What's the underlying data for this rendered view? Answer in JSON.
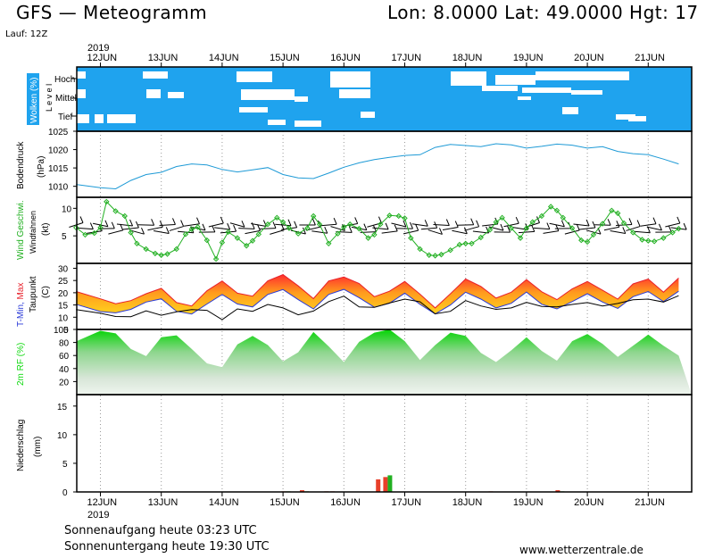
{
  "header": {
    "title": "GFS — Meteogramm",
    "coords": "Lon: 8.0000  Lat: 49.0000  Hgt: 17",
    "run": "Lauf: 12Z"
  },
  "footer": {
    "sunrise": "Sonnenaufgang heute 03:23 UTC",
    "sunset": "Sonnenuntergang heute 19:30 UTC",
    "site": "www.wetterzentrale.de"
  },
  "colors": {
    "cloud_bg": "#1fa3ee",
    "pressure": "#1e9ad6",
    "wind_speed": "#22b022",
    "tmin": "#2a3ad8",
    "tmax": "#e8202a",
    "dewpoint": "#000000",
    "humidity": "#11d911",
    "precip_a": "#e8402a",
    "precip_b": "#21b021"
  },
  "chart_data": {
    "type": "line",
    "x_axis": {
      "year": "2019",
      "day_labels": [
        "12JUN",
        "13JUN",
        "14JUN",
        "15JUN",
        "16JUN",
        "17JUN",
        "18JUN",
        "19JUN",
        "20JUN",
        "21JUN"
      ],
      "time_range": "12 Jun 2019 00 UTC – 21 Jun 2019 12 UTC"
    },
    "panels": [
      {
        "id": "clouds",
        "type": "heatmap",
        "ylabel": "Wolken (%)",
        "ylabel2": "L e v e l",
        "levels": [
          "Hoch",
          "Mittel",
          "Tief"
        ]
      },
      {
        "id": "pressure",
        "type": "line",
        "ylabel": "Bodendruck",
        "ylabel2": "(hPa)",
        "ylim": [
          1007,
          1025
        ],
        "yticks": [
          1010,
          1015,
          1020,
          1025
        ],
        "x_days": [
          -0.4,
          0,
          0.25,
          0.5,
          0.75,
          1,
          1.25,
          1.5,
          1.75,
          2,
          2.25,
          2.5,
          2.75,
          3,
          3.25,
          3.5,
          3.75,
          4,
          4.25,
          4.5,
          4.75,
          5,
          5.25,
          5.5,
          5.75,
          6,
          6.25,
          6.5,
          6.75,
          7,
          7.25,
          7.5,
          7.75,
          8,
          8.25,
          8.5,
          8.75,
          9,
          9.25,
          9.5
        ],
        "values": [
          1010.5,
          1009.6,
          1009.3,
          1011.6,
          1013.2,
          1013.8,
          1015.4,
          1016.1,
          1015.8,
          1014.6,
          1013.9,
          1014.5,
          1015.1,
          1013.2,
          1012.3,
          1012.1,
          1013.6,
          1015.2,
          1016.4,
          1017.3,
          1017.9,
          1018.4,
          1018.6,
          1020.6,
          1021.4,
          1021.1,
          1020.8,
          1021.6,
          1021.3,
          1020.4,
          1020.9,
          1021.5,
          1021.2,
          1020.4,
          1020.8,
          1019.5,
          1018.9,
          1018.6,
          1017.4,
          1016.1
        ]
      },
      {
        "id": "wind",
        "type": "line",
        "ylabel": "Wind Geschwi.",
        "ylabel2": "Windfahnen",
        "ylabel3": "(kt)",
        "ylim": [
          0,
          12
        ],
        "yticks": [
          5,
          10
        ],
        "x_days": [
          -0.4,
          -0.25,
          -0.1,
          0,
          0.1,
          0.25,
          0.4,
          0.5,
          0.6,
          0.75,
          0.9,
          1,
          1.1,
          1.25,
          1.4,
          1.5,
          1.6,
          1.75,
          1.9,
          2,
          2.1,
          2.25,
          2.4,
          2.5,
          2.6,
          2.75,
          2.9,
          3,
          3.1,
          3.25,
          3.4,
          3.5,
          3.6,
          3.75,
          3.9,
          4,
          4.1,
          4.25,
          4.4,
          4.5,
          4.6,
          4.75,
          4.9,
          5,
          5.1,
          5.25,
          5.4,
          5.5,
          5.6,
          5.75,
          5.9,
          6,
          6.1,
          6.25,
          6.4,
          6.5,
          6.6,
          6.75,
          6.9,
          7,
          7.1,
          7.25,
          7.4,
          7.5,
          7.6,
          7.75,
          7.9,
          8,
          8.1,
          8.25,
          8.4,
          8.5,
          8.6,
          8.75,
          8.9,
          9,
          9.1,
          9.25,
          9.4,
          9.5
        ],
        "values": [
          6.5,
          5.2,
          5.5,
          6.5,
          11.2,
          9.5,
          8.6,
          5.6,
          3.6,
          2.6,
          1.8,
          1.5,
          1.7,
          2.6,
          5.3,
          6.2,
          6.6,
          4.2,
          0.8,
          3.8,
          5.7,
          4.6,
          3.2,
          4.1,
          5.3,
          7.1,
          8.3,
          7.5,
          6.4,
          5.4,
          6.4,
          8.6,
          7.1,
          3.6,
          5.4,
          6.6,
          7.1,
          6.3,
          4.6,
          5.2,
          7.1,
          8.7,
          8.6,
          8.2,
          4.6,
          2.6,
          1.5,
          1.4,
          1.6,
          2.4,
          3.4,
          3.6,
          3.6,
          4.7,
          6.1,
          7.5,
          8.3,
          6.4,
          4.6,
          6.4,
          7.5,
          8.6,
          10.3,
          9.6,
          8.3,
          6.4,
          4.2,
          3.9,
          5.2,
          7.2,
          9.6,
          9.1,
          7.3,
          5.6,
          4.3,
          4.1,
          4.0,
          4.6,
          5.6,
          6.3
        ]
      },
      {
        "id": "temperature",
        "type": "area",
        "ylabel": "T-Min, Max",
        "ylabel2": "Taupunkt",
        "ylabel3": "(C)",
        "ylim": [
          5,
          32
        ],
        "yticks": [
          5,
          10,
          15,
          20,
          25,
          30
        ],
        "series": [
          {
            "name": "Max",
            "x_days": [
              -0.4,
              0,
              0.25,
              0.5,
              0.75,
              1,
              1.25,
              1.5,
              1.75,
              2,
              2.25,
              2.5,
              2.75,
              3,
              3.25,
              3.5,
              3.75,
              4,
              4.25,
              4.5,
              4.75,
              5,
              5.25,
              5.5,
              5.75,
              6,
              6.25,
              6.5,
              6.75,
              7,
              7.25,
              7.5,
              7.75,
              8,
              8.25,
              8.5,
              8.75,
              9,
              9.25,
              9.5
            ],
            "values": [
              20.5,
              17.5,
              15.5,
              16.8,
              19.6,
              21.8,
              16.0,
              14.6,
              20.8,
              24.8,
              19.8,
              18.6,
              24.9,
              27.4,
              22.8,
              17.6,
              24.8,
              26.4,
              23.8,
              18.4,
              20.6,
              24.6,
              19.4,
              13.8,
              19.6,
              25.6,
              22.6,
              17.8,
              20.2,
              25.4,
              20.4,
              17.2,
              21.6,
              24.6,
              21.0,
              17.4,
              23.6,
              25.6,
              20.2,
              26.0
            ]
          },
          {
            "name": "Min",
            "x_days": [
              -0.4,
              0,
              0.25,
              0.5,
              0.75,
              1,
              1.25,
              1.5,
              1.75,
              2,
              2.25,
              2.5,
              2.75,
              3,
              3.25,
              3.5,
              3.75,
              4,
              4.25,
              4.5,
              4.75,
              5,
              5.25,
              5.5,
              5.75,
              6,
              6.25,
              6.5,
              6.75,
              7,
              7.25,
              7.5,
              7.75,
              8,
              8.25,
              8.5,
              8.75,
              9,
              9.25,
              9.5
            ],
            "values": [
              15.3,
              12.3,
              11.8,
              13.2,
              16.2,
              17.5,
              12.4,
              11.3,
              15.4,
              19.3,
              15.4,
              14.2,
              19.3,
              21.3,
              17.2,
              13.4,
              19.3,
              21.4,
              18.0,
              14.1,
              15.7,
              19.8,
              15.3,
              11.3,
              15.0,
              20.2,
              17.4,
              13.8,
              15.7,
              20.3,
              15.3,
              13.4,
              16.4,
              19.6,
              16.2,
              13.6,
              18.4,
              20.5,
              16.4,
              20.6
            ]
          },
          {
            "name": "Taupunkt",
            "x_days": [
              -0.4,
              0,
              0.25,
              0.5,
              0.75,
              1,
              1.25,
              1.5,
              1.75,
              2,
              2.25,
              2.5,
              2.75,
              3,
              3.25,
              3.5,
              3.75,
              4,
              4.25,
              4.5,
              4.75,
              5,
              5.25,
              5.5,
              5.75,
              6,
              6.25,
              6.5,
              6.75,
              7,
              7.25,
              7.5,
              7.75,
              8,
              8.25,
              8.5,
              8.75,
              9,
              9.25,
              9.5
            ],
            "values": [
              13.1,
              11.6,
              10.3,
              10.2,
              12.6,
              10.8,
              12.2,
              13.1,
              12.8,
              9.0,
              13.4,
              12.4,
              15.2,
              13.8,
              11.0,
              12.5,
              16.4,
              18.6,
              14.2,
              14.0,
              15.8,
              17.4,
              16.3,
              11.4,
              12.4,
              16.8,
              14.6,
              13.2,
              13.8,
              16.1,
              14.4,
              14.2,
              15.2,
              16.0,
              14.6,
              15.6,
              17.1,
              17.4,
              16.2,
              18.8
            ]
          }
        ]
      },
      {
        "id": "humidity",
        "type": "area",
        "ylabel": "2m RF (%)",
        "ylim": [
          0,
          100
        ],
        "yticks": [
          20,
          40,
          60,
          80,
          100
        ],
        "x_days": [
          -0.4,
          0,
          0.25,
          0.5,
          0.75,
          1,
          1.25,
          1.5,
          1.75,
          2,
          2.25,
          2.5,
          2.75,
          3,
          3.25,
          3.5,
          3.75,
          4,
          4.25,
          4.5,
          4.75,
          5,
          5.25,
          5.5,
          5.75,
          6,
          6.25,
          6.5,
          6.75,
          7,
          7.25,
          7.5,
          7.75,
          8,
          8.25,
          8.5,
          8.75,
          9,
          9.25,
          9.5
        ],
        "values": [
          82,
          98,
          94,
          70,
          59,
          88,
          91,
          70,
          48,
          42,
          77,
          90,
          76,
          51,
          65,
          96,
          74,
          50,
          81,
          95,
          100,
          82,
          53,
          76,
          95,
          90,
          64,
          50,
          68,
          88,
          67,
          52,
          82,
          93,
          78,
          58,
          75,
          92,
          75,
          60
        ]
      },
      {
        "id": "precip",
        "type": "bar",
        "ylabel": "Niederschlag",
        "ylabel2": "(mm)",
        "ylim": [
          0,
          17
        ],
        "yticks": [
          0,
          5,
          10,
          15
        ],
        "bars": [
          {
            "x_day": 3.05,
            "a": 0.1,
            "b": 0.1
          },
          {
            "x_day": 3.35,
            "a": 0.3,
            "b": 0.1
          },
          {
            "x_day": 3.75,
            "a": 0.1,
            "b": 0
          },
          {
            "x_day": 3.85,
            "a": 0.1,
            "b": 0
          },
          {
            "x_day": 4.6,
            "a": 2.2,
            "b": 0
          },
          {
            "x_day": 4.72,
            "a": 2.6,
            "b": 2.9
          },
          {
            "x_day": 7.55,
            "a": 0.3,
            "b": 0.1
          },
          {
            "x_day": 6.45,
            "a": 0.1,
            "b": 0
          }
        ]
      }
    ]
  }
}
